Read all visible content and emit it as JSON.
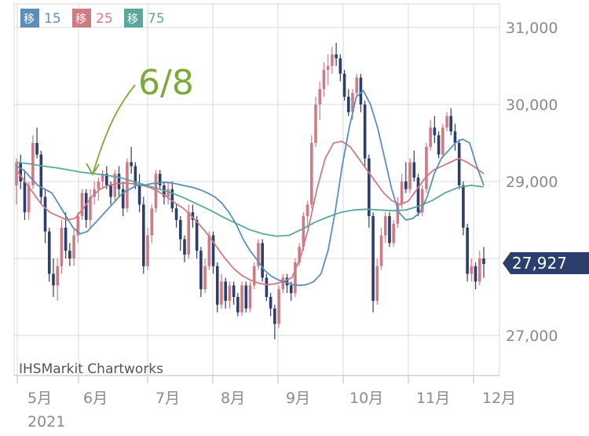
{
  "chart_data": {
    "type": "candlestick",
    "legend": [
      {
        "tag": "移",
        "label": "15",
        "color": "#5b8fb9"
      },
      {
        "tag": "移",
        "label": "25",
        "color": "#d07a86"
      },
      {
        "tag": "移",
        "label": "75",
        "color": "#5aa89c"
      }
    ],
    "y_ticks": [
      "31,000",
      "30,000",
      "29,000",
      "27,000"
    ],
    "y_tick_values": [
      31000,
      30000,
      29000,
      27000
    ],
    "ylim": [
      26500,
      31400
    ],
    "x_ticks": [
      "5月",
      "6月",
      "7月",
      "8月",
      "9月",
      "10月",
      "11月",
      "12月"
    ],
    "year_label": "2021",
    "credit": "IHSMarkit Chartworks",
    "annotation": "6/8",
    "last_price": "27,927",
    "last_value": 27927,
    "colors": {
      "up": "#d07a86",
      "down": "#2c3e6b",
      "ma15": "#5b8fb9",
      "ma25": "#d07a86",
      "ma75": "#5aa89c",
      "tag": "#2c3e6b",
      "annotation": "#7aaa3a"
    },
    "candles": [
      [
        28950,
        29300,
        28700,
        29250
      ],
      [
        29250,
        29350,
        28900,
        29000
      ],
      [
        29000,
        29150,
        28500,
        28600
      ],
      [
        28600,
        29000,
        28500,
        28950
      ],
      [
        28950,
        29600,
        28900,
        29500
      ],
      [
        29500,
        29700,
        29300,
        29350
      ],
      [
        29350,
        29400,
        28700,
        28800
      ],
      [
        28800,
        28900,
        28200,
        28350
      ],
      [
        28350,
        28400,
        27700,
        27800
      ],
      [
        27800,
        28000,
        27500,
        27650
      ],
      [
        27650,
        28000,
        27450,
        27900
      ],
      [
        27900,
        28500,
        27800,
        28400
      ],
      [
        28400,
        28600,
        28000,
        28100
      ],
      [
        28100,
        28200,
        27900,
        28000
      ],
      [
        28000,
        28400,
        27900,
        28300
      ],
      [
        28300,
        28600,
        28200,
        28550
      ],
      [
        28550,
        28900,
        28500,
        28850
      ],
      [
        28850,
        28900,
        28400,
        28500
      ],
      [
        28500,
        28900,
        28400,
        28800
      ],
      [
        28800,
        29000,
        28700,
        28900
      ],
      [
        28900,
        29050,
        28750,
        29000
      ],
      [
        29000,
        29150,
        28900,
        29100
      ],
      [
        29100,
        29200,
        28900,
        28950
      ],
      [
        28950,
        29000,
        28700,
        28800
      ],
      [
        28800,
        29150,
        28750,
        29100
      ],
      [
        29100,
        29200,
        28800,
        28900
      ],
      [
        28900,
        29000,
        28550,
        28650
      ],
      [
        28650,
        29300,
        28600,
        29250
      ],
      [
        29250,
        29450,
        29100,
        29200
      ],
      [
        29200,
        29250,
        28900,
        28950
      ],
      [
        28950,
        29100,
        28600,
        28700
      ],
      [
        28700,
        28800,
        27800,
        27900
      ],
      [
        27900,
        28400,
        27850,
        28300
      ],
      [
        28300,
        28700,
        28200,
        28650
      ],
      [
        28650,
        29150,
        28600,
        29100
      ],
      [
        29100,
        29150,
        28900,
        28950
      ],
      [
        28950,
        29000,
        28700,
        28800
      ],
      [
        28800,
        29000,
        28700,
        28900
      ],
      [
        28900,
        29000,
        28600,
        28650
      ],
      [
        28650,
        28700,
        28400,
        28500
      ],
      [
        28500,
        28550,
        28100,
        28250
      ],
      [
        28250,
        28300,
        27950,
        28050
      ],
      [
        28050,
        28700,
        28000,
        28600
      ],
      [
        28600,
        28700,
        28400,
        28500
      ],
      [
        28500,
        28550,
        28000,
        28100
      ],
      [
        28100,
        28150,
        27500,
        27600
      ],
      [
        27600,
        28000,
        27550,
        27900
      ],
      [
        27900,
        28350,
        27850,
        28300
      ],
      [
        28300,
        28350,
        27800,
        27900
      ],
      [
        27900,
        27950,
        27300,
        27400
      ],
      [
        27400,
        27800,
        27350,
        27700
      ],
      [
        27700,
        27750,
        27350,
        27450
      ],
      [
        27450,
        27700,
        27350,
        27650
      ],
      [
        27650,
        27700,
        27400,
        27500
      ],
      [
        27500,
        27550,
        27250,
        27300
      ],
      [
        27300,
        27700,
        27250,
        27650
      ],
      [
        27650,
        27700,
        27300,
        27350
      ],
      [
        27350,
        27700,
        27300,
        27650
      ],
      [
        27650,
        27950,
        27600,
        27900
      ],
      [
        27900,
        28250,
        27850,
        28200
      ],
      [
        28200,
        28250,
        27700,
        27750
      ],
      [
        27750,
        27800,
        27450,
        27500
      ],
      [
        27500,
        27550,
        27250,
        27350
      ],
      [
        27350,
        27400,
        26950,
        27150
      ],
      [
        27150,
        27650,
        27100,
        27600
      ],
      [
        27600,
        27800,
        27550,
        27750
      ],
      [
        27750,
        27800,
        27550,
        27650
      ],
      [
        27650,
        27700,
        27450,
        27550
      ],
      [
        27550,
        28000,
        27500,
        27950
      ],
      [
        27950,
        28200,
        27900,
        28150
      ],
      [
        28150,
        28600,
        28100,
        28550
      ],
      [
        28550,
        28750,
        28400,
        28700
      ],
      [
        28700,
        29600,
        28650,
        29500
      ],
      [
        29500,
        30100,
        29450,
        30000
      ],
      [
        30000,
        30300,
        29800,
        30200
      ],
      [
        30200,
        30550,
        30100,
        30450
      ],
      [
        30450,
        30650,
        30250,
        30500
      ],
      [
        30500,
        30750,
        30400,
        30650
      ],
      [
        30650,
        30800,
        30500,
        30600
      ],
      [
        30600,
        30650,
        30300,
        30400
      ],
      [
        30400,
        30450,
        30050,
        30100
      ],
      [
        30100,
        30200,
        29850,
        29900
      ],
      [
        29900,
        30200,
        29800,
        30150
      ],
      [
        30150,
        30400,
        30100,
        30350
      ],
      [
        30350,
        30400,
        29900,
        30000
      ],
      [
        30000,
        30050,
        29200,
        29300
      ],
      [
        29300,
        29350,
        28400,
        28550
      ],
      [
        28550,
        28600,
        27300,
        27450
      ],
      [
        27450,
        28000,
        27400,
        27900
      ],
      [
        27900,
        28400,
        27850,
        28300
      ],
      [
        28300,
        28600,
        28200,
        28550
      ],
      [
        28550,
        28600,
        28150,
        28200
      ],
      [
        28200,
        28500,
        28150,
        28450
      ],
      [
        28450,
        28800,
        28400,
        28700
      ],
      [
        28700,
        29100,
        28650,
        29000
      ],
      [
        29000,
        29250,
        28850,
        28900
      ],
      [
        28900,
        29300,
        28850,
        29250
      ],
      [
        29250,
        29400,
        29000,
        29050
      ],
      [
        29050,
        29100,
        28550,
        28600
      ],
      [
        28600,
        28950,
        28550,
        28900
      ],
      [
        28900,
        29500,
        28850,
        29450
      ],
      [
        29450,
        29800,
        29400,
        29700
      ],
      [
        29700,
        29850,
        29500,
        29600
      ],
      [
        29600,
        29650,
        29300,
        29350
      ],
      [
        29350,
        29750,
        29300,
        29700
      ],
      [
        29700,
        29900,
        29650,
        29850
      ],
      [
        29850,
        29950,
        29600,
        29650
      ],
      [
        29650,
        29750,
        29400,
        29500
      ],
      [
        29500,
        29550,
        28900,
        28950
      ],
      [
        28950,
        29000,
        28300,
        28400
      ],
      [
        28400,
        28450,
        27700,
        27800
      ],
      [
        27800,
        28000,
        27700,
        27900
      ],
      [
        27900,
        27950,
        27600,
        27700
      ],
      [
        27700,
        28100,
        27650,
        28000
      ],
      [
        28000,
        28150,
        27750,
        27927
      ]
    ],
    "ma15": [
      29200,
      29150,
      29050,
      28950,
      28900,
      28850,
      28700,
      28550,
      28400,
      28320,
      28350,
      28450,
      28550,
      28650,
      28750,
      28850,
      28900,
      28950,
      28950,
      28970,
      28980,
      28990,
      28980,
      28960,
      28940,
      28920,
      28890,
      28850,
      28800,
      28720,
      28600,
      28450,
      28250,
      28100,
      27980,
      27850,
      27770,
      27720,
      27690,
      27660,
      27650,
      27660,
      27700,
      27800,
      28100,
      28600,
      29200,
      29700,
      30100,
      30180,
      30000,
      29700,
      29300,
      28900,
      28600,
      28500,
      28520,
      28600,
      28800,
      29100,
      29300,
      29400,
      29500,
      29550,
      29500,
      29200,
      28950
    ],
    "ma25": [
      29150,
      29000,
      28850,
      28700,
      28600,
      28550,
      28500,
      28520,
      28650,
      28800,
      28900,
      28950,
      28970,
      28980,
      28970,
      28950,
      28920,
      28870,
      28800,
      28720,
      28650,
      28550,
      28430,
      28300,
      28150,
      28000,
      27870,
      27780,
      27720,
      27680,
      27660,
      27670,
      27700,
      27750,
      28000,
      28400,
      28900,
      29300,
      29500,
      29520,
      29450,
      29300,
      29150,
      29000,
      28850,
      28750,
      28700,
      28750,
      28900,
      29050,
      29150,
      29200,
      29250,
      29300,
      29250,
      29180,
      29100
    ],
    "ma75": [
      29250,
      29230,
      29200,
      29180,
      29150,
      29120,
      29100,
      29080,
      29050,
      29000,
      28950,
      28900,
      28850,
      28780,
      28700,
      28620,
      28530,
      28450,
      28370,
      28320,
      28290,
      28300,
      28380,
      28470,
      28540,
      28600,
      28630,
      28640,
      28630,
      28620,
      28630,
      28680,
      28750,
      28850,
      28920,
      28950,
      28930
    ]
  }
}
